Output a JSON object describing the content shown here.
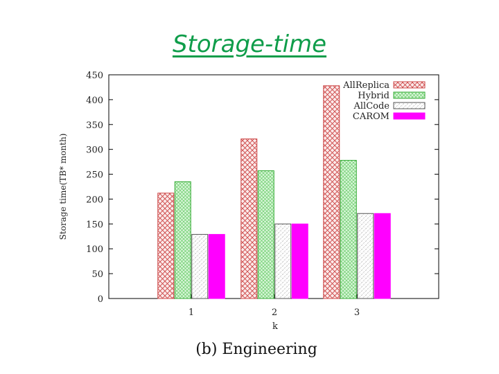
{
  "slide": {
    "title": "Storage-time",
    "caption": "(b)  Engineering"
  },
  "chart_data": {
    "type": "bar",
    "title": "",
    "xlabel": "k",
    "ylabel": "Storage time(TB* month)",
    "categories": [
      "1",
      "2",
      "3"
    ],
    "ylim": [
      0,
      450
    ],
    "yticks": [
      0,
      50,
      100,
      150,
      200,
      250,
      300,
      350,
      400,
      450
    ],
    "grid": false,
    "legend_position": "top-right",
    "series": [
      {
        "name": "AllReplica",
        "values": [
          212,
          321,
          428
        ],
        "color": "#cc4444",
        "pattern": "crosshatch"
      },
      {
        "name": "Hybrid",
        "values": [
          235,
          257,
          278
        ],
        "color": "#33aa33",
        "pattern": "crosshatch-green"
      },
      {
        "name": "AllCode",
        "values": [
          129,
          150,
          171
        ],
        "color": "#555555",
        "pattern": "dots"
      },
      {
        "name": "CAROM",
        "values": [
          129,
          150,
          171
        ],
        "color": "#ff00ff",
        "pattern": "solid"
      }
    ]
  }
}
